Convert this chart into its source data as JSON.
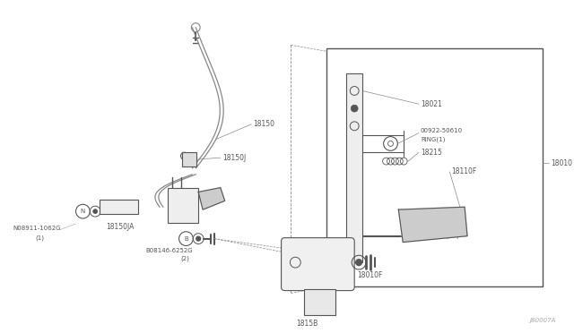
{
  "bg_color": "#ffffff",
  "line_color": "#888888",
  "dark_color": "#555555",
  "text_color": "#555555",
  "fig_width": 6.4,
  "fig_height": 3.72,
  "dpi": 100,
  "watermark": "J80007A",
  "cable_label": "18150",
  "clip_label": "18150J",
  "bracket_label": "18150JA",
  "n_bolt_label1": "N08911-1062G",
  "n_bolt_label2": "(1)",
  "b_bolt_label1": "B08146-6252G",
  "b_bolt_label2": "(2)",
  "assy_label": "18010",
  "bracket_part": "18021",
  "ring_label1": "00922-50610",
  "ring_label2": "RING(1)",
  "spring_label": "18215",
  "pedal_label": "18110F",
  "box_label": "18010F",
  "base_label": "1815B"
}
